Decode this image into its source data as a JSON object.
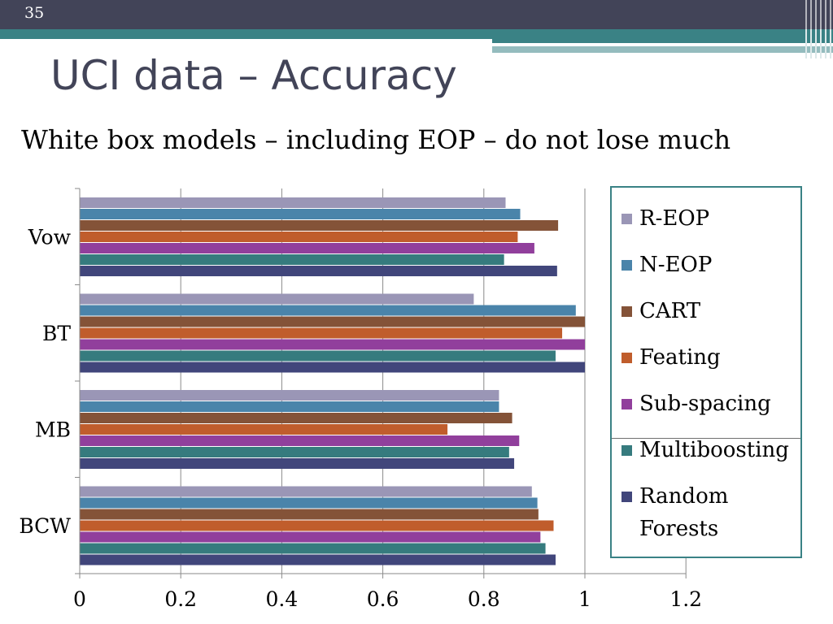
{
  "slide": {
    "number": "35",
    "title": "UCI data – Accuracy",
    "subtitle": "White box models – including EOP – do not lose much"
  },
  "chart_data": {
    "type": "bar",
    "orientation": "horizontal",
    "categories": [
      "Vow",
      "BT",
      "MB",
      "BCW"
    ],
    "xlim": [
      0,
      1.2
    ],
    "xticks": [
      "0",
      "0.2",
      "0.4",
      "0.6",
      "0.8",
      "1",
      "1.2"
    ],
    "grid": true,
    "legend_position": "right",
    "series": [
      {
        "name": "R-EOP",
        "color": "#9a96b6",
        "values": [
          0.843,
          0.78,
          0.83,
          0.895
        ]
      },
      {
        "name": "N-EOP",
        "color": "#4a84aa",
        "values": [
          0.872,
          0.982,
          0.83,
          0.906
        ]
      },
      {
        "name": "CART",
        "color": "#845338",
        "values": [
          0.947,
          1.0,
          0.856,
          0.908
        ]
      },
      {
        "name": "Feating",
        "color": "#c05d2c",
        "values": [
          0.867,
          0.955,
          0.728,
          0.938
        ]
      },
      {
        "name": "Sub-spacing",
        "color": "#913f9c",
        "values": [
          0.9,
          1.0,
          0.87,
          0.912
        ]
      },
      {
        "name": "Multiboosting",
        "color": "#367b7e",
        "values": [
          0.84,
          0.942,
          0.85,
          0.922
        ]
      },
      {
        "name": "Random Forests",
        "color": "#41467b",
        "values": [
          0.945,
          1.0,
          0.86,
          0.942
        ]
      }
    ]
  },
  "legend": {
    "items": [
      {
        "label": "R-EOP",
        "color": "#9a96b6"
      },
      {
        "label": "N-EOP",
        "color": "#4a84aa"
      },
      {
        "label": "CART",
        "color": "#845338"
      },
      {
        "label": "Feating",
        "color": "#c05d2c"
      },
      {
        "label": "Sub-spacing",
        "color": "#913f9c"
      },
      {
        "label": "Multiboosting",
        "color": "#367b7e"
      },
      {
        "label": "Random",
        "label2": "Forests",
        "color": "#41467b"
      }
    ]
  }
}
